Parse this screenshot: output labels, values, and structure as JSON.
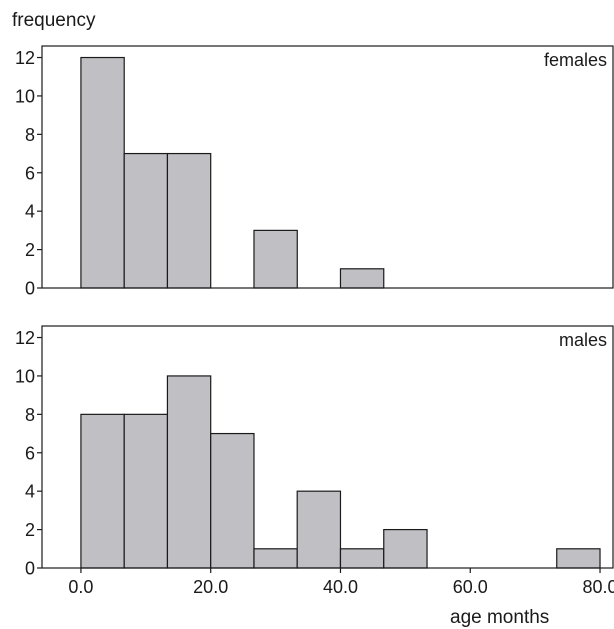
{
  "chart_data": {
    "type": "bar",
    "ylabel": "frequency",
    "xlabel": "age months",
    "bin_width": 6.67,
    "bar_color": "#c0c0c4",
    "xlim": [
      -6,
      82
    ],
    "ylim": [
      0,
      12.6
    ],
    "xticks": [
      0,
      20,
      40,
      60,
      80
    ],
    "xtick_labels": [
      "0.0",
      "20.0",
      "40.0",
      "60.0",
      "80.0"
    ],
    "yticks": [
      0,
      2,
      4,
      6,
      8,
      10,
      12
    ],
    "ytick_labels": [
      "0",
      "2",
      "4",
      "6",
      "8",
      "10",
      "12"
    ],
    "panels": [
      {
        "name": "females",
        "bin_starts": [
          0,
          6.67,
          13.33,
          26.67,
          40
        ],
        "values": [
          12,
          7,
          7,
          3,
          1
        ]
      },
      {
        "name": "males",
        "bin_starts": [
          0,
          6.67,
          13.33,
          20,
          26.67,
          33.33,
          40,
          46.67,
          73.33
        ],
        "values": [
          8,
          8,
          10,
          7,
          1,
          4,
          1,
          2,
          1
        ]
      }
    ]
  }
}
